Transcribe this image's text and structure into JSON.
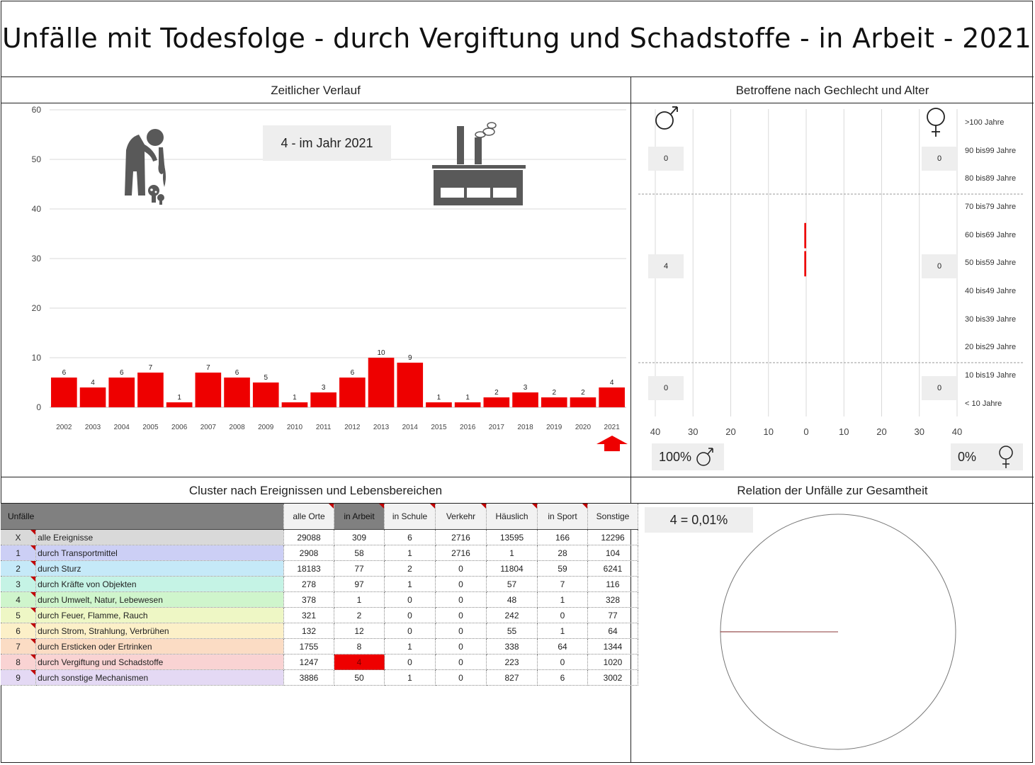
{
  "title": "Unfälle mit Todesfolge - durch Vergiftung und Schadstoffe  - in Arbeit - 2021",
  "sections": {
    "timeline": "Zeitlicher Verlauf",
    "gender_age": "Betroffene nach Gechlecht und Alter",
    "cluster": "Cluster nach Ereignissen und Lebensbereichen",
    "relation": "Relation der Unfälle zur Gesamtheit"
  },
  "timeline_box": "4 - im Jahr 2021",
  "icons": {
    "person": "person-poison-icon",
    "factory": "factory-icon",
    "arrow": "up-arrow-icon",
    "male": "male-symbol-icon",
    "female": "female-symbol-icon"
  },
  "colors": {
    "bar": "#ee0000",
    "highlight": "#ee0000",
    "grid": "#d9d9d9"
  },
  "chart_data": [
    {
      "type": "bar",
      "categories": [
        "2002",
        "2003",
        "2004",
        "2005",
        "2006",
        "2007",
        "2008",
        "2009",
        "2010",
        "2011",
        "2012",
        "2013",
        "2014",
        "2015",
        "2016",
        "2017",
        "2018",
        "2019",
        "2020",
        "2021"
      ],
      "values": [
        6,
        4,
        6,
        7,
        1,
        7,
        6,
        5,
        1,
        3,
        6,
        10,
        9,
        1,
        1,
        2,
        3,
        2,
        2,
        4
      ],
      "yticks": [
        "0",
        "10",
        "20",
        "30",
        "40",
        "50",
        "60"
      ],
      "ylim": [
        0,
        60
      ],
      "grid": true
    },
    {
      "type": "bar",
      "orientation": "horizontal",
      "age_groups": [
        "< 10 Jahre",
        "10 bis19 Jahre",
        "20 bis29 Jahre",
        "30 bis39 Jahre",
        "40 bis49 Jahre",
        "50 bis59 Jahre",
        "60 bis69 Jahre",
        "70 bis79 Jahre",
        "80 bis89 Jahre",
        "90 bis99 Jahre",
        ">100 Jahre"
      ],
      "male": [
        0,
        0,
        0,
        0,
        0,
        2,
        2,
        0,
        0,
        0,
        0
      ],
      "female": [
        0,
        0,
        0,
        0,
        0,
        0,
        0,
        0,
        0,
        0,
        0
      ],
      "xticks": [
        "40",
        "30",
        "20",
        "10",
        "0",
        "10",
        "20",
        "30",
        "40"
      ],
      "xlim": [
        -40,
        40
      ],
      "group_totals": {
        "male": [
          "0",
          "4",
          "0"
        ],
        "female": [
          "0",
          "0",
          "0"
        ]
      },
      "share": {
        "male": "100%",
        "female": "0%"
      }
    },
    {
      "type": "pie",
      "label": "4 =  0,01%",
      "values": [
        4,
        29084
      ]
    }
  ],
  "table": {
    "headers": [
      "Unfälle",
      "alle Orte",
      "in Arbeit",
      "in Schule",
      "Verkehr",
      "Häuslich",
      "in Sport",
      "Sonstige"
    ],
    "rows": [
      {
        "idx": "X",
        "name": "alle Ereignisse",
        "color": "#d9d9d9",
        "vals": [
          "29088",
          "309",
          "6",
          "2716",
          "13595",
          "166",
          "12296"
        ]
      },
      {
        "idx": "1",
        "name": "durch Transportmittel",
        "color": "#cccff5",
        "vals": [
          "2908",
          "58",
          "1",
          "2716",
          "1",
          "28",
          "104"
        ]
      },
      {
        "idx": "2",
        "name": "durch Sturz",
        "color": "#c5e9f8",
        "vals": [
          "18183",
          "77",
          "2",
          "0",
          "11804",
          "59",
          "6241"
        ]
      },
      {
        "idx": "3",
        "name": "durch Kräfte von Objekten",
        "color": "#c5f3e5",
        "vals": [
          "278",
          "97",
          "1",
          "0",
          "57",
          "7",
          "116"
        ]
      },
      {
        "idx": "4",
        "name": "durch Umwelt, Natur, Lebewesen",
        "color": "#cff5cc",
        "vals": [
          "378",
          "1",
          "0",
          "0",
          "48",
          "1",
          "328"
        ]
      },
      {
        "idx": "5",
        "name": "durch Feuer, Flamme, Rauch",
        "color": "#eef7c5",
        "vals": [
          "321",
          "2",
          "0",
          "0",
          "242",
          "0",
          "77"
        ]
      },
      {
        "idx": "6",
        "name": "durch Strom, Strahlung, Verbrühen",
        "color": "#fcf0c8",
        "vals": [
          "132",
          "12",
          "0",
          "0",
          "55",
          "1",
          "64"
        ]
      },
      {
        "idx": "7",
        "name": "durch Ersticken oder Ertrinken",
        "color": "#fbdcc4",
        "vals": [
          "1755",
          "8",
          "1",
          "0",
          "338",
          "64",
          "1344"
        ]
      },
      {
        "idx": "8",
        "name": "durch Vergiftung und Schadstoffe",
        "color": "#f9d3d3",
        "vals": [
          "1247",
          "4",
          "0",
          "0",
          "223",
          "0",
          "1020"
        ]
      },
      {
        "idx": "9",
        "name": "durch sonstige Mechanismen",
        "color": "#e4d9f4",
        "vals": [
          "3886",
          "50",
          "1",
          "0",
          "827",
          "6",
          "3002"
        ]
      }
    ]
  }
}
